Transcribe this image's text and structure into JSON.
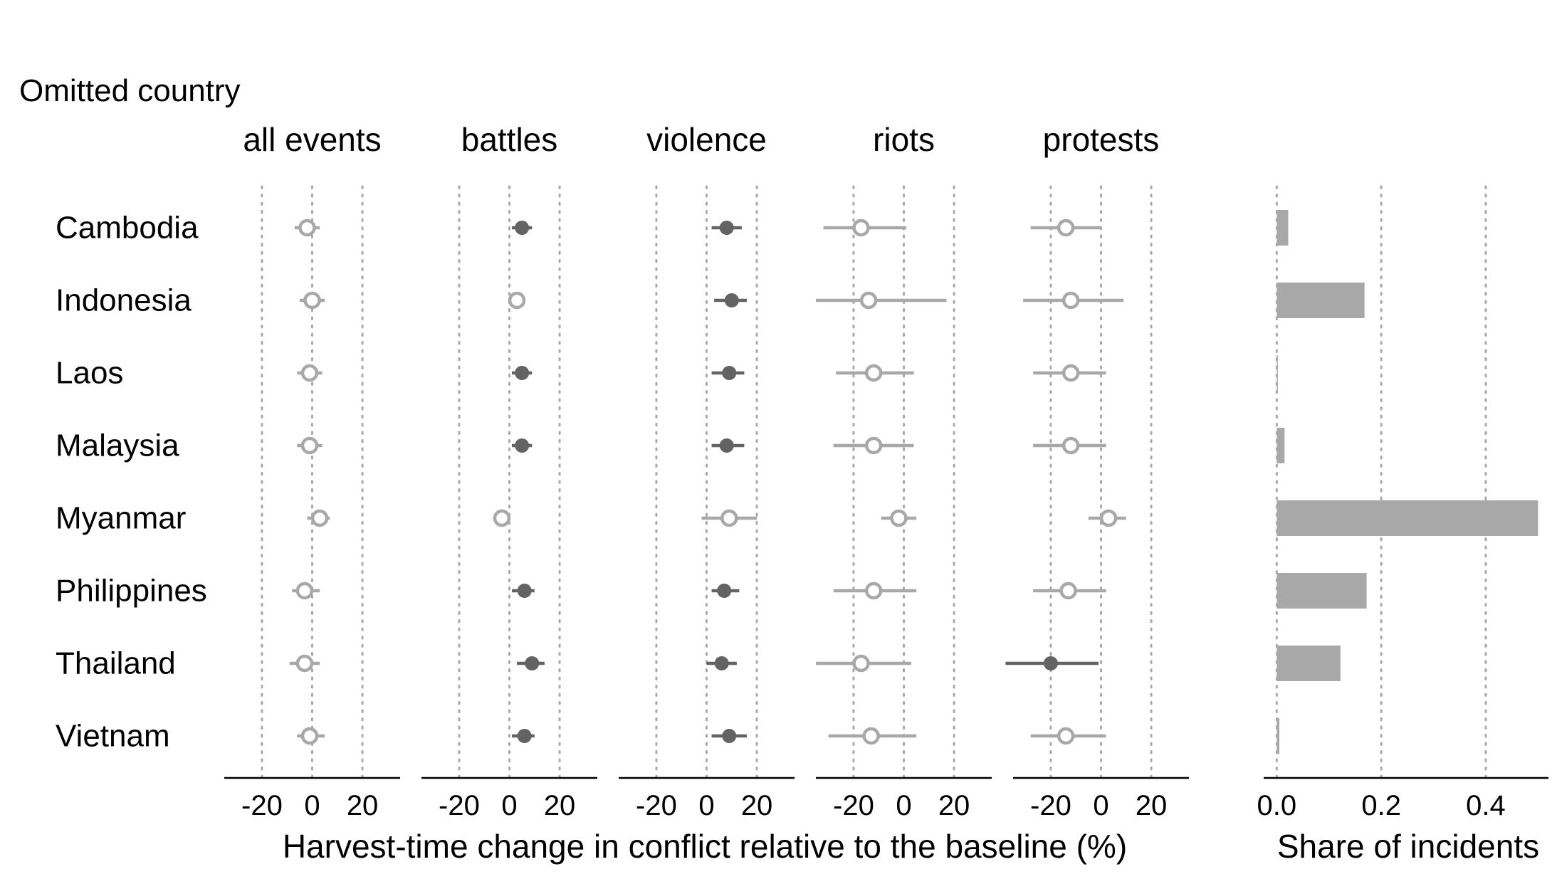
{
  "chart_data": {
    "type": "dot-whisker and bar (faceted)",
    "y_title": "Omitted country",
    "countries": [
      "Cambodia",
      "Indonesia",
      "Laos",
      "Malaysia",
      "Myanmar",
      "Philippines",
      "Thailand",
      "Vietnam"
    ],
    "facets": [
      {
        "name": "all events",
        "xlim": [
          -35,
          35
        ],
        "ticks": [
          -20,
          0,
          20
        ],
        "estimates": [
          {
            "country": "Cambodia",
            "est": -2,
            "lo": -7,
            "hi": 3,
            "significant": false
          },
          {
            "country": "Indonesia",
            "est": 0,
            "lo": -5,
            "hi": 5,
            "significant": false
          },
          {
            "country": "Laos",
            "est": -1,
            "lo": -6,
            "hi": 4,
            "significant": false
          },
          {
            "country": "Malaysia",
            "est": -1,
            "lo": -6,
            "hi": 4,
            "significant": false
          },
          {
            "country": "Myanmar",
            "est": 3,
            "lo": -2,
            "hi": 7,
            "significant": false
          },
          {
            "country": "Philippines",
            "est": -3,
            "lo": -8,
            "hi": 3,
            "significant": false
          },
          {
            "country": "Thailand",
            "est": -3,
            "lo": -9,
            "hi": 3,
            "significant": false
          },
          {
            "country": "Vietnam",
            "est": -1,
            "lo": -6,
            "hi": 5,
            "significant": false
          }
        ]
      },
      {
        "name": "battles",
        "xlim": [
          -35,
          35
        ],
        "ticks": [
          -20,
          0,
          20
        ],
        "estimates": [
          {
            "country": "Cambodia",
            "est": 5,
            "lo": 1,
            "hi": 9,
            "significant": true
          },
          {
            "country": "Indonesia",
            "est": 3,
            "lo": 3,
            "hi": 3,
            "significant": false
          },
          {
            "country": "Laos",
            "est": 5,
            "lo": 1,
            "hi": 9,
            "significant": true
          },
          {
            "country": "Malaysia",
            "est": 5,
            "lo": 1,
            "hi": 9,
            "significant": true
          },
          {
            "country": "Myanmar",
            "est": -3,
            "lo": -3,
            "hi": -3,
            "significant": false
          },
          {
            "country": "Philippines",
            "est": 6,
            "lo": 1,
            "hi": 10,
            "significant": true
          },
          {
            "country": "Thailand",
            "est": 9,
            "lo": 3,
            "hi": 14,
            "significant": true
          },
          {
            "country": "Vietnam",
            "est": 6,
            "lo": 1,
            "hi": 10,
            "significant": true
          }
        ]
      },
      {
        "name": "violence",
        "xlim": [
          -35,
          35
        ],
        "ticks": [
          -20,
          0,
          20
        ],
        "estimates": [
          {
            "country": "Cambodia",
            "est": 8,
            "lo": 2,
            "hi": 14,
            "significant": true
          },
          {
            "country": "Indonesia",
            "est": 10,
            "lo": 3,
            "hi": 16,
            "significant": true
          },
          {
            "country": "Laos",
            "est": 9,
            "lo": 2,
            "hi": 15,
            "significant": true
          },
          {
            "country": "Malaysia",
            "est": 8,
            "lo": 2,
            "hi": 15,
            "significant": true
          },
          {
            "country": "Myanmar",
            "est": 9,
            "lo": -2,
            "hi": 20,
            "significant": false
          },
          {
            "country": "Philippines",
            "est": 7,
            "lo": 2,
            "hi": 13,
            "significant": true
          },
          {
            "country": "Thailand",
            "est": 6,
            "lo": 0,
            "hi": 12,
            "significant": true
          },
          {
            "country": "Vietnam",
            "est": 9,
            "lo": 2,
            "hi": 16,
            "significant": true
          }
        ]
      },
      {
        "name": "riots",
        "xlim": [
          -35,
          35
        ],
        "ticks": [
          -20,
          0,
          20
        ],
        "estimates": [
          {
            "country": "Cambodia",
            "est": -17,
            "lo": -32,
            "hi": 1,
            "significant": false
          },
          {
            "country": "Indonesia",
            "est": -14,
            "lo": -35,
            "hi": 17,
            "significant": false
          },
          {
            "country": "Laos",
            "est": -12,
            "lo": -27,
            "hi": 4,
            "significant": false
          },
          {
            "country": "Malaysia",
            "est": -12,
            "lo": -28,
            "hi": 4,
            "significant": false
          },
          {
            "country": "Myanmar",
            "est": -2,
            "lo": -9,
            "hi": 5,
            "significant": false
          },
          {
            "country": "Philippines",
            "est": -12,
            "lo": -28,
            "hi": 5,
            "significant": false
          },
          {
            "country": "Thailand",
            "est": -17,
            "lo": -35,
            "hi": 3,
            "significant": false
          },
          {
            "country": "Vietnam",
            "est": -13,
            "lo": -30,
            "hi": 5,
            "significant": false
          }
        ]
      },
      {
        "name": "protests",
        "xlim": [
          -35,
          35
        ],
        "ticks": [
          -20,
          0,
          20
        ],
        "estimates": [
          {
            "country": "Cambodia",
            "est": -14,
            "lo": -28,
            "hi": 0,
            "significant": false
          },
          {
            "country": "Indonesia",
            "est": -12,
            "lo": -31,
            "hi": 9,
            "significant": false
          },
          {
            "country": "Laos",
            "est": -12,
            "lo": -27,
            "hi": 2,
            "significant": false
          },
          {
            "country": "Malaysia",
            "est": -12,
            "lo": -27,
            "hi": 2,
            "significant": false
          },
          {
            "country": "Myanmar",
            "est": 3,
            "lo": -5,
            "hi": 10,
            "significant": false
          },
          {
            "country": "Philippines",
            "est": -13,
            "lo": -27,
            "hi": 2,
            "significant": false
          },
          {
            "country": "Thailand",
            "est": -20,
            "lo": -38,
            "hi": -1,
            "significant": true
          },
          {
            "country": "Vietnam",
            "est": -14,
            "lo": -28,
            "hi": 2,
            "significant": false
          }
        ]
      }
    ],
    "x_title": "Harvest-time change in conflict relative to the baseline (%)",
    "share": {
      "x_title": "Share of incidents",
      "xlim": [
        -0.025,
        0.52
      ],
      "ticks": [
        "0.0",
        "0.2",
        "0.4"
      ],
      "tick_values": [
        0.0,
        0.2,
        0.4
      ],
      "values": [
        {
          "country": "Cambodia",
          "value": 0.022
        },
        {
          "country": "Indonesia",
          "value": 0.168
        },
        {
          "country": "Laos",
          "value": 0.002
        },
        {
          "country": "Malaysia",
          "value": 0.015
        },
        {
          "country": "Myanmar",
          "value": 0.5
        },
        {
          "country": "Philippines",
          "value": 0.172
        },
        {
          "country": "Thailand",
          "value": 0.122
        },
        {
          "country": "Vietnam",
          "value": 0.005
        }
      ]
    },
    "colors": {
      "significant": "#636363",
      "not_significant": "#a8a8a8",
      "bar": "#a8a8a8",
      "grid": "#a8a8a8",
      "axis": "#000000"
    },
    "grid": "dotted vertical gridlines at tick positions"
  }
}
